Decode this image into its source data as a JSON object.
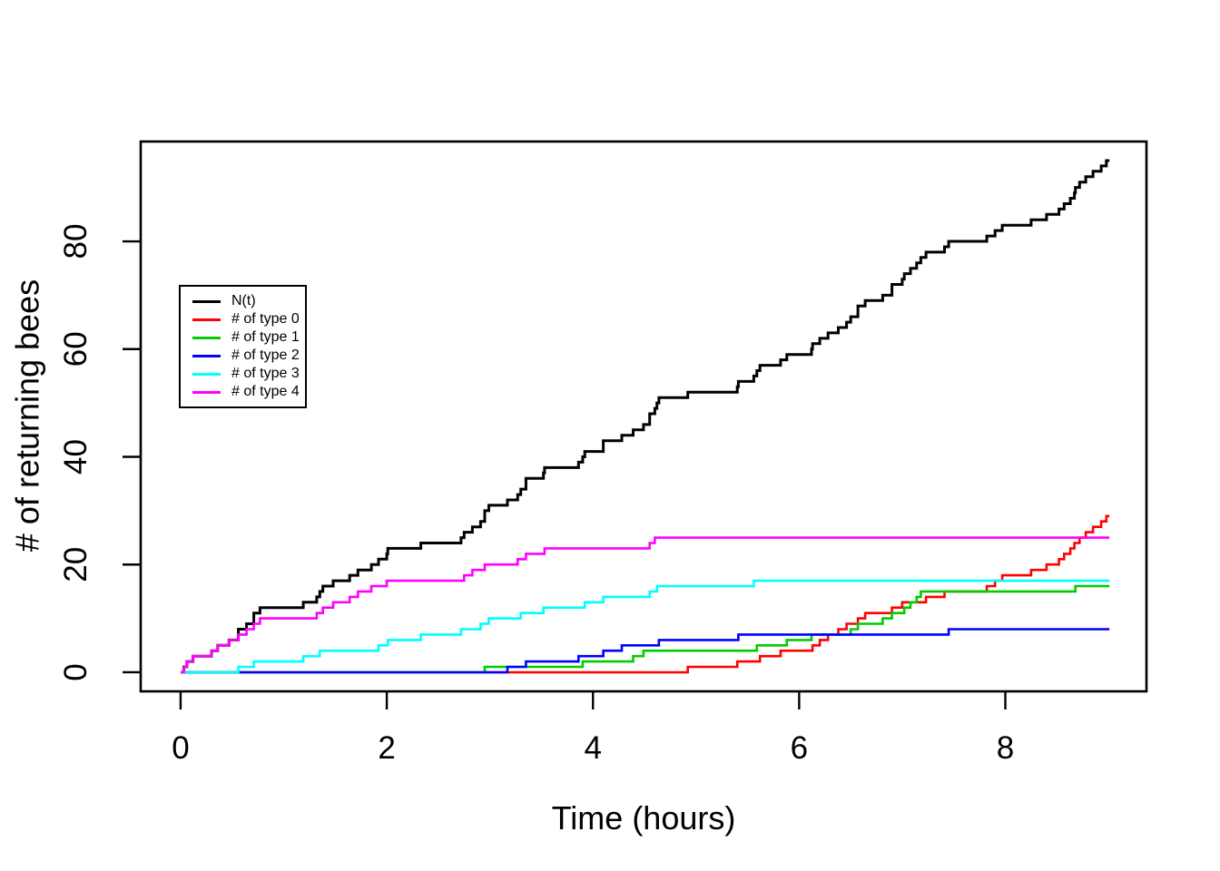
{
  "figure": {
    "background_color": "#ffffff",
    "frame_color": "#000000"
  },
  "chart_data": {
    "type": "line",
    "subtype": "step-counting-process",
    "title": "",
    "xlabel": "Time (hours)",
    "ylabel": "# of returning bees",
    "x_ticks": [
      0,
      2,
      4,
      6,
      8
    ],
    "y_ticks": [
      0,
      20,
      40,
      60,
      80
    ],
    "xlim": [
      -0.387,
      9.369
    ],
    "ylim": [
      -3.54,
      98.53
    ],
    "grid": false,
    "legend_position": "upper-left-inside",
    "t_start": 0,
    "t_end": 9.01,
    "start_value": 0,
    "series": [
      {
        "label": "N(t)",
        "color": "#000000",
        "final_value": 95,
        "derived": "sum of all type processes",
        "jump_times": [
          0.03,
          0.06,
          0.12,
          0.3,
          0.36,
          0.47,
          0.56,
          0.56,
          0.64,
          0.71,
          0.71,
          0.77,
          1.19,
          1.32,
          1.35,
          1.38,
          1.48,
          1.64,
          1.72,
          1.85,
          1.92,
          2.0,
          2.01,
          2.33,
          2.72,
          2.75,
          2.83,
          2.91,
          2.95,
          2.95,
          2.99,
          3.17,
          3.27,
          3.3,
          3.35,
          3.35,
          3.52,
          3.53,
          3.86,
          3.9,
          3.92,
          4.1,
          4.1,
          4.28,
          4.39,
          4.49,
          4.55,
          4.55,
          4.6,
          4.62,
          4.64,
          4.92,
          5.4,
          5.41,
          5.56,
          5.59,
          5.62,
          5.82,
          5.88,
          6.12,
          6.13,
          6.2,
          6.28,
          6.38,
          6.46,
          6.5,
          6.57,
          6.57,
          6.64,
          6.81,
          6.9,
          6.9,
          7.0,
          7.02,
          7.08,
          7.14,
          7.18,
          7.23,
          7.41,
          7.45,
          7.82,
          7.9,
          7.97,
          8.25,
          8.4,
          8.52,
          8.57,
          8.63,
          8.67,
          8.68,
          8.72,
          8.78,
          8.85,
          8.93,
          8.98
        ]
      },
      {
        "label": "# of type 0",
        "color": "#FF0000",
        "final_value": 29,
        "jump_times": [
          4.92,
          5.4,
          5.62,
          5.82,
          6.13,
          6.2,
          6.28,
          6.38,
          6.46,
          6.57,
          6.64,
          6.9,
          7.0,
          7.23,
          7.41,
          7.82,
          7.9,
          7.97,
          8.25,
          8.4,
          8.52,
          8.57,
          8.63,
          8.67,
          8.72,
          8.78,
          8.85,
          8.93,
          8.98
        ]
      },
      {
        "label": "# of type 1",
        "color": "#00CD00",
        "final_value": 16,
        "jump_times": [
          2.95,
          3.9,
          4.39,
          4.49,
          5.59,
          5.88,
          6.12,
          6.5,
          6.57,
          6.81,
          6.9,
          7.02,
          7.08,
          7.14,
          7.18,
          8.68
        ]
      },
      {
        "label": "# of type 2",
        "color": "#0000FF",
        "final_value": 8,
        "jump_times": [
          3.17,
          3.35,
          3.86,
          4.1,
          4.28,
          4.64,
          5.41,
          7.45
        ]
      },
      {
        "label": "# of type 3",
        "color": "#00FFFF",
        "final_value": 17,
        "jump_times": [
          0.56,
          0.71,
          1.19,
          1.35,
          1.92,
          2.01,
          2.33,
          2.72,
          2.91,
          2.99,
          3.3,
          3.52,
          3.92,
          4.1,
          4.55,
          4.62,
          5.56
        ]
      },
      {
        "label": "# of type 4",
        "color": "#FF00FF",
        "final_value": 25,
        "jump_times": [
          0.03,
          0.06,
          0.12,
          0.3,
          0.36,
          0.47,
          0.56,
          0.64,
          0.71,
          0.77,
          1.32,
          1.38,
          1.48,
          1.64,
          1.72,
          1.85,
          2.0,
          2.75,
          2.83,
          2.95,
          3.27,
          3.35,
          3.53,
          4.55,
          4.6
        ]
      }
    ]
  }
}
